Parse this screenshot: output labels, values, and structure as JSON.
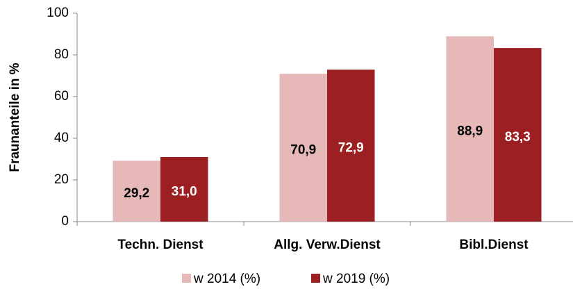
{
  "chart_data": {
    "type": "bar",
    "y_label": "Fraunanteile in %",
    "categories": [
      "Techn. Dienst",
      "Allg. Verw.Dienst",
      "Bibl.Dienst"
    ],
    "series": [
      {
        "name": "w 2014 (%)",
        "color": "#e6b8b7",
        "values": [
          29.2,
          70.9,
          88.9
        ],
        "value_labels": [
          "29,2",
          "70,9",
          "88,9"
        ]
      },
      {
        "name": "w 2019 (%)",
        "color": "#9c1f22",
        "values": [
          31.0,
          72.9,
          83.3
        ],
        "value_labels": [
          "31,0",
          "72,9",
          "83,3"
        ]
      }
    ],
    "ylim": [
      0,
      100
    ],
    "yticks": [
      0,
      20,
      40,
      60,
      80,
      100
    ],
    "legend": "bottom"
  }
}
